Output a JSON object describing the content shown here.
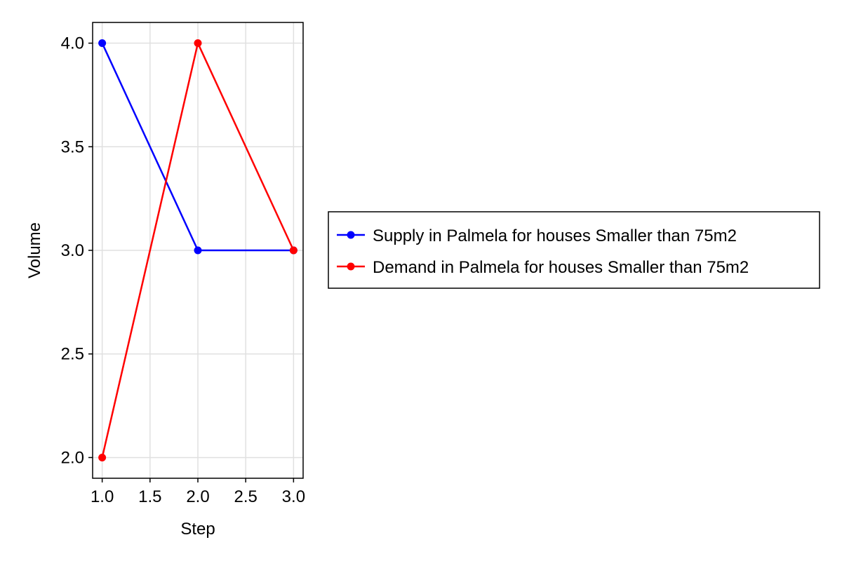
{
  "chart_data": {
    "type": "line",
    "title": "",
    "xlabel": "Step",
    "ylabel": "Volume",
    "xlim": [
      0.9,
      3.1
    ],
    "ylim": [
      1.9,
      4.1
    ],
    "xticks": [
      1.0,
      1.5,
      2.0,
      2.5,
      3.0
    ],
    "yticks": [
      2.0,
      2.5,
      3.0,
      3.5,
      4.0
    ],
    "xtick_labels": [
      "1.0",
      "1.5",
      "2.0",
      "2.5",
      "3.0"
    ],
    "ytick_labels": [
      "2.0",
      "2.5",
      "3.0",
      "3.5",
      "4.0"
    ],
    "grid": true,
    "legend_position": "right",
    "x": [
      1,
      2,
      3
    ],
    "series": [
      {
        "name": "Supply in Palmela for houses Smaller than 75m2",
        "values": [
          4,
          3,
          3
        ],
        "color": "#0000ff"
      },
      {
        "name": "Demand in Palmela for houses Smaller than 75m2",
        "values": [
          2,
          4,
          3
        ],
        "color": "#ff0000"
      }
    ]
  }
}
